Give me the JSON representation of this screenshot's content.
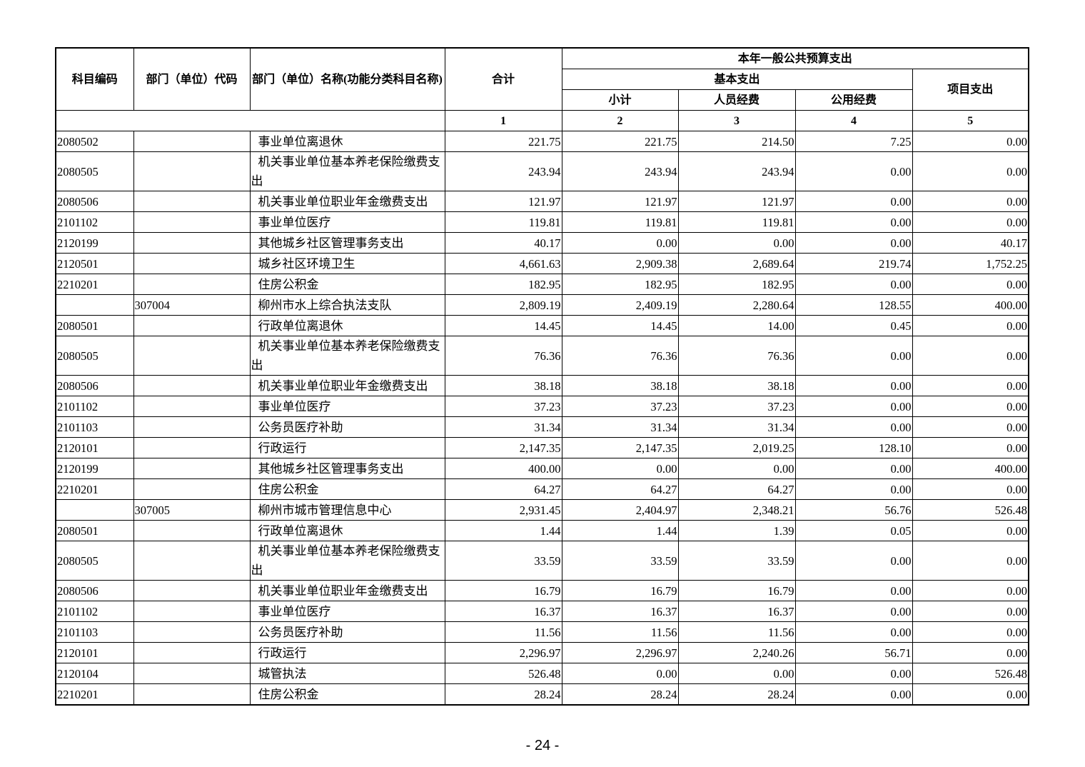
{
  "header": {
    "code": "科目编码",
    "dept": "部门（单位）代码",
    "name": "部门（单位）名称(功能分类科目名称)",
    "total": "合计",
    "group": "本年一般公共预算支出",
    "basic": "基本支出",
    "project": "项目支出",
    "subtotal": "小计",
    "personnel": "人员经费",
    "public": "公用经费",
    "column_numbers": [
      1,
      2,
      3,
      4,
      5
    ]
  },
  "rows": [
    {
      "code": "2080502",
      "name": "事业单位离退休",
      "values": [
        "221.75",
        "221.75",
        "214.50",
        "7.25",
        "0.00"
      ]
    },
    {
      "code": "2080505",
      "name": "机关事业单位基本养老保险缴费支出",
      "values": [
        "243.94",
        "243.94",
        "243.94",
        "0.00",
        "0.00"
      ]
    },
    {
      "code": "2080506",
      "name": "机关事业单位职业年金缴费支出",
      "values": [
        "121.97",
        "121.97",
        "121.97",
        "0.00",
        "0.00"
      ]
    },
    {
      "code": "2101102",
      "name": "事业单位医疗",
      "values": [
        "119.81",
        "119.81",
        "119.81",
        "0.00",
        "0.00"
      ]
    },
    {
      "code": "2120199",
      "name": "其他城乡社区管理事务支出",
      "values": [
        "40.17",
        "0.00",
        "0.00",
        "0.00",
        "40.17"
      ]
    },
    {
      "code": "2120501",
      "name": "城乡社区环境卫生",
      "values": [
        "4,661.63",
        "2,909.38",
        "2,689.64",
        "219.74",
        "1,752.25"
      ]
    },
    {
      "code": "2210201",
      "name": "住房公积金",
      "values": [
        "182.95",
        "182.95",
        "182.95",
        "0.00",
        "0.00"
      ]
    },
    {
      "dept": "307004",
      "name": "柳州市水上综合执法支队",
      "values": [
        "2,809.19",
        "2,409.19",
        "2,280.64",
        "128.55",
        "400.00"
      ]
    },
    {
      "code": "2080501",
      "name": "行政单位离退休",
      "values": [
        "14.45",
        "14.45",
        "14.00",
        "0.45",
        "0.00"
      ]
    },
    {
      "code": "2080505",
      "name": "机关事业单位基本养老保险缴费支出",
      "values": [
        "76.36",
        "76.36",
        "76.36",
        "0.00",
        "0.00"
      ]
    },
    {
      "code": "2080506",
      "name": "机关事业单位职业年金缴费支出",
      "values": [
        "38.18",
        "38.18",
        "38.18",
        "0.00",
        "0.00"
      ]
    },
    {
      "code": "2101102",
      "name": "事业单位医疗",
      "values": [
        "37.23",
        "37.23",
        "37.23",
        "0.00",
        "0.00"
      ]
    },
    {
      "code": "2101103",
      "name": "公务员医疗补助",
      "values": [
        "31.34",
        "31.34",
        "31.34",
        "0.00",
        "0.00"
      ]
    },
    {
      "code": "2120101",
      "name": "行政运行",
      "values": [
        "2,147.35",
        "2,147.35",
        "2,019.25",
        "128.10",
        "0.00"
      ]
    },
    {
      "code": "2120199",
      "name": "其他城乡社区管理事务支出",
      "values": [
        "400.00",
        "0.00",
        "0.00",
        "0.00",
        "400.00"
      ]
    },
    {
      "code": "2210201",
      "name": "住房公积金",
      "values": [
        "64.27",
        "64.27",
        "64.27",
        "0.00",
        "0.00"
      ]
    },
    {
      "dept": "307005",
      "name": "柳州市城市管理信息中心",
      "values": [
        "2,931.45",
        "2,404.97",
        "2,348.21",
        "56.76",
        "526.48"
      ]
    },
    {
      "code": "2080501",
      "name": "行政单位离退休",
      "values": [
        "1.44",
        "1.44",
        "1.39",
        "0.05",
        "0.00"
      ]
    },
    {
      "code": "2080505",
      "name": "机关事业单位基本养老保险缴费支出",
      "values": [
        "33.59",
        "33.59",
        "33.59",
        "0.00",
        "0.00"
      ]
    },
    {
      "code": "2080506",
      "name": "机关事业单位职业年金缴费支出",
      "values": [
        "16.79",
        "16.79",
        "16.79",
        "0.00",
        "0.00"
      ]
    },
    {
      "code": "2101102",
      "name": "事业单位医疗",
      "values": [
        "16.37",
        "16.37",
        "16.37",
        "0.00",
        "0.00"
      ]
    },
    {
      "code": "2101103",
      "name": "公务员医疗补助",
      "values": [
        "11.56",
        "11.56",
        "11.56",
        "0.00",
        "0.00"
      ]
    },
    {
      "code": "2120101",
      "name": "行政运行",
      "values": [
        "2,296.97",
        "2,296.97",
        "2,240.26",
        "56.71",
        "0.00"
      ]
    },
    {
      "code": "2120104",
      "name": "城管执法",
      "values": [
        "526.48",
        "0.00",
        "0.00",
        "0.00",
        "526.48"
      ]
    },
    {
      "code": "2210201",
      "name": "住房公积金",
      "values": [
        "28.24",
        "28.24",
        "28.24",
        "0.00",
        "0.00"
      ]
    }
  ],
  "footer": {
    "page": "- 24 -"
  }
}
